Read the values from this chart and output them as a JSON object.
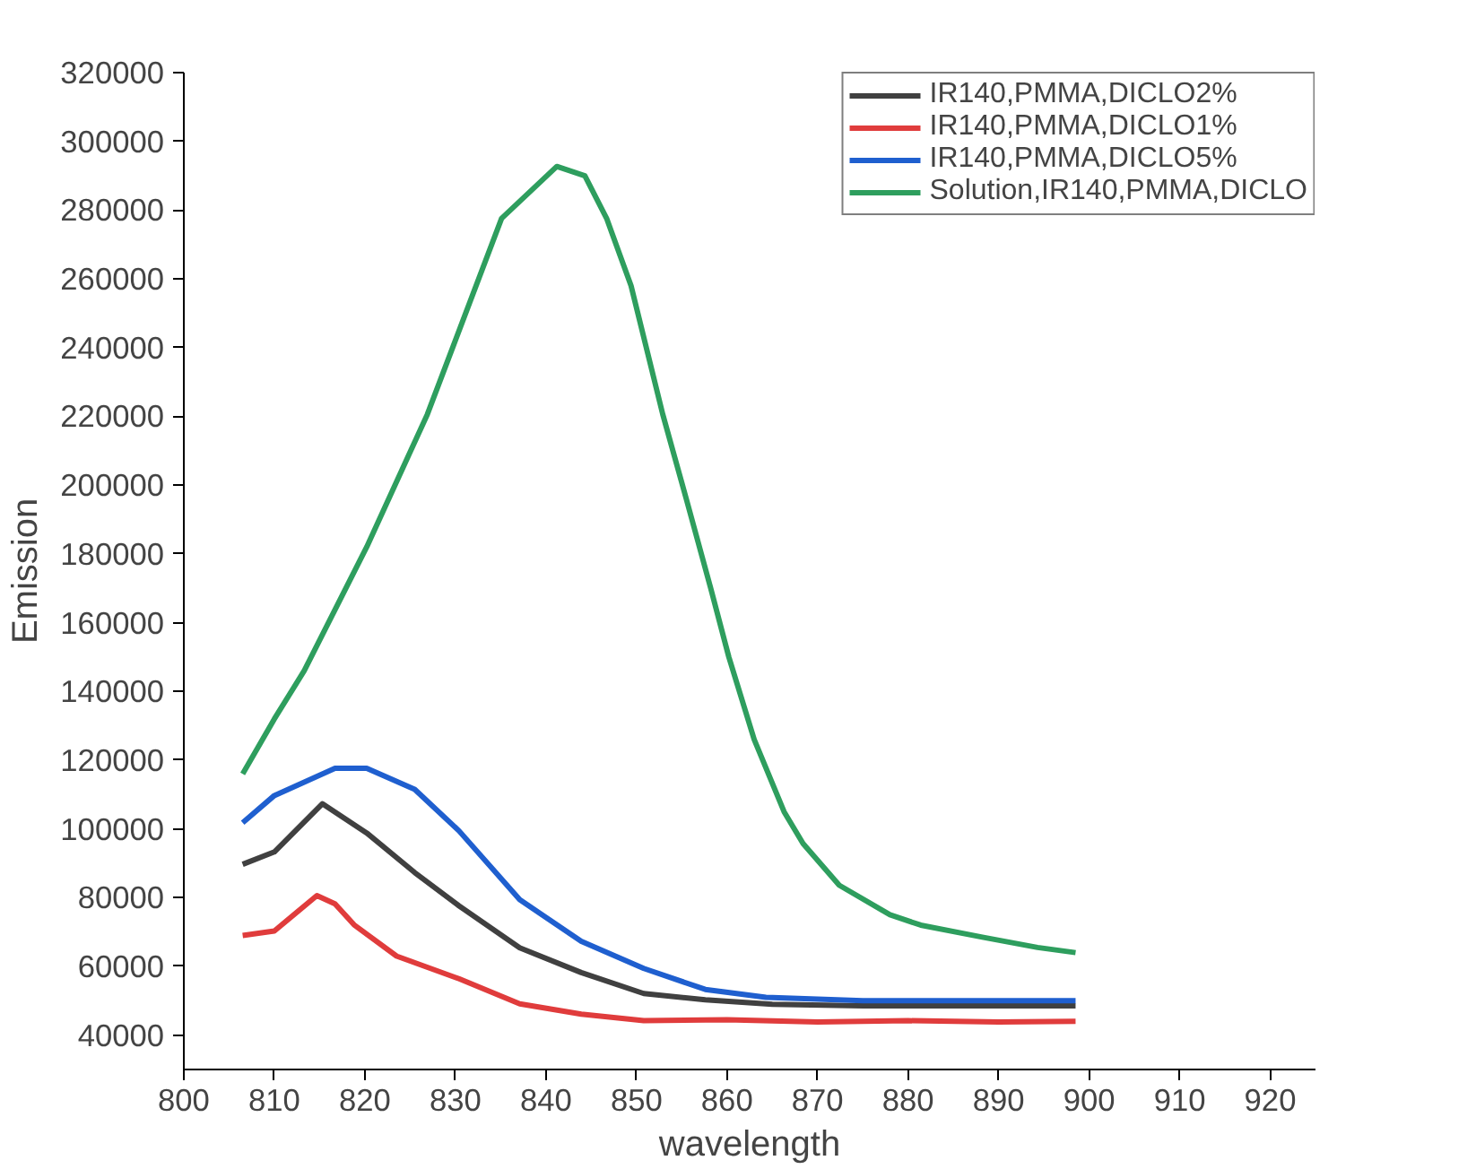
{
  "chart_data": {
    "type": "line",
    "xlabel": "wavelength",
    "ylabel": "Emission",
    "xlim": [
      800,
      925
    ],
    "ylim": [
      30000,
      320000
    ],
    "xticks": [
      800,
      810,
      820,
      830,
      840,
      850,
      860,
      870,
      880,
      890,
      900,
      910,
      920
    ],
    "yticks": [
      40000,
      60000,
      80000,
      100000,
      120000,
      140000,
      160000,
      180000,
      200000,
      220000,
      240000,
      260000,
      280000,
      300000,
      320000
    ],
    "grid": false,
    "legend": "top right",
    "line_style": "solid",
    "marker": "none",
    "series": [
      {
        "name": "IR140,PMMA,DICLO2%",
        "color": "#404040",
        "x": [
          806.5,
          810,
          815.3,
          820.2,
          825.5,
          830.4,
          837.1,
          843.9,
          850.8,
          857.6,
          865,
          875,
          885,
          898.5
        ],
        "values": [
          89700,
          93300,
          107300,
          98800,
          87300,
          77600,
          65400,
          58200,
          52100,
          50300,
          49000,
          48500,
          48500,
          48500
        ]
      },
      {
        "name": "IR140,PMMA,DICLO1%",
        "color": "#e03c3c",
        "x": [
          806.5,
          810,
          814.7,
          816.7,
          818.8,
          823.5,
          830.4,
          837.1,
          843.9,
          850.8,
          860,
          870,
          880,
          890,
          898.5
        ],
        "values": [
          69000,
          70300,
          80600,
          78200,
          72100,
          63000,
          56400,
          49100,
          46100,
          44200,
          44500,
          43800,
          44200,
          43800,
          44000
        ]
      },
      {
        "name": "IR140,PMMA,DICLO5%",
        "color": "#1f5fcf",
        "x": [
          806.5,
          810,
          816.7,
          820.2,
          825.5,
          830.4,
          837.1,
          843.9,
          850.8,
          857.6,
          864.3,
          875,
          885,
          898.5
        ],
        "values": [
          101800,
          109700,
          117600,
          117600,
          111500,
          99400,
          79400,
          67300,
          59400,
          53300,
          51000,
          50000,
          50000,
          50000
        ]
      },
      {
        "name": "Solution,IR140,PMMA,DICLO",
        "color": "#2e9e5e",
        "x": [
          806.5,
          810,
          813.3,
          820.2,
          826.9,
          835.1,
          841.2,
          844.3,
          846.7,
          849.4,
          852.9,
          855.5,
          858.2,
          860.2,
          863,
          866.3,
          868.4,
          872.4,
          878,
          881.4,
          888.2,
          894.3,
          898.5
        ],
        "values": [
          116000,
          132000,
          146000,
          182000,
          220600,
          277600,
          292700,
          290000,
          277600,
          258000,
          220600,
          196000,
          170000,
          150000,
          126000,
          105000,
          95700,
          83600,
          75000,
          72000,
          68500,
          65500,
          64000
        ]
      }
    ]
  }
}
